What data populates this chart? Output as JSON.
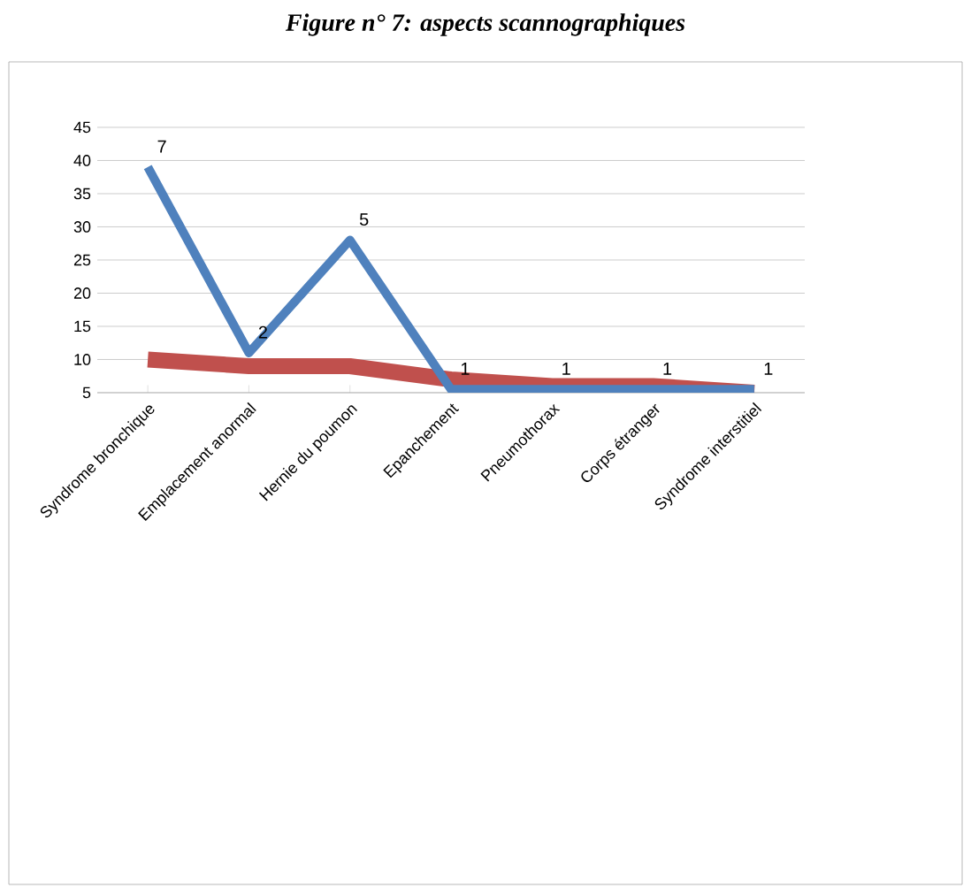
{
  "chart_data": {
    "type": "line",
    "title": "Figure n° 7: aspects scannographiques",
    "categories": [
      "Syndrome bronchique",
      "Emplacement anormal",
      "Hernie du poumon",
      "Epanchement",
      "Pneumothorax",
      "Corps étranger",
      "Syndrome interstitiel"
    ],
    "series": [
      {
        "color": "#c0504d",
        "values": [
          10,
          9,
          9,
          7,
          6,
          6,
          5
        ]
      },
      {
        "color": "#4f81bd",
        "values": [
          39,
          11,
          28,
          5.5,
          5.5,
          5.5,
          5.5
        ]
      }
    ],
    "annotations": [
      {
        "text": "7",
        "x": "Syndrome bronchique",
        "y": 39
      },
      {
        "text": "2",
        "x": "Emplacement anormal",
        "y": 11
      },
      {
        "text": "5",
        "x": "Hernie du poumon",
        "y": 28
      },
      {
        "text": "1",
        "x": "Epanchement",
        "y": 5.5
      },
      {
        "text": "1",
        "x": "Pneumothorax",
        "y": 5.5
      },
      {
        "text": "1",
        "x": "Corps étranger",
        "y": 5.5
      },
      {
        "text": "1",
        "x": "Syndrome interstitiel",
        "y": 5.5
      }
    ],
    "ylim": [
      5,
      45
    ],
    "yticks": [
      5,
      10,
      15,
      20,
      25,
      30,
      35,
      40,
      45
    ],
    "grid": "y"
  }
}
